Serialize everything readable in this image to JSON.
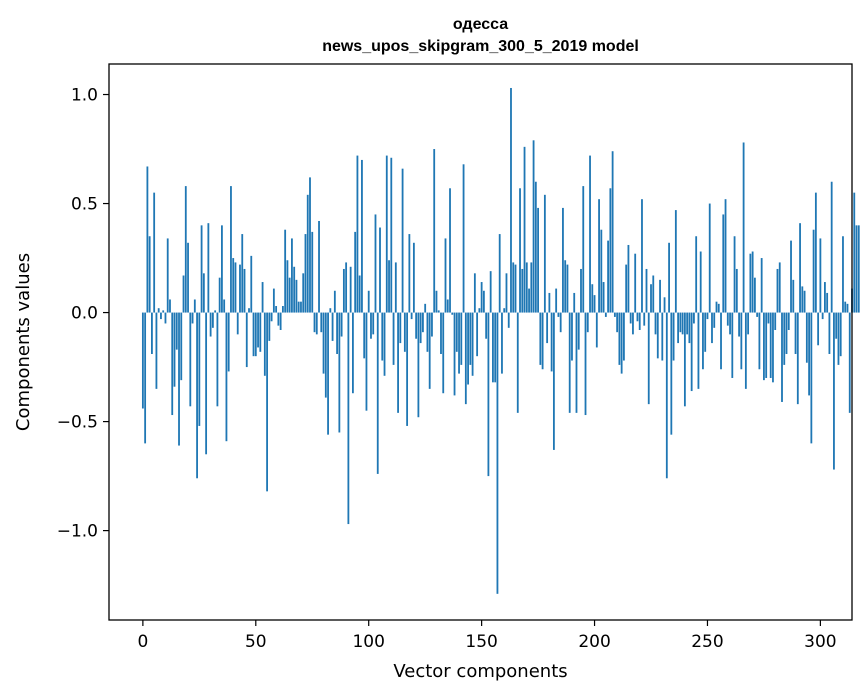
{
  "chart_data": {
    "type": "bar",
    "title_line1": "одесса",
    "title_line2": "news_upos_skipgram_300_5_2019 model",
    "xlabel": "Vector components",
    "ylabel": "Components values",
    "xlim": [
      -15,
      314
    ],
    "ylim": [
      -1.41,
      1.14
    ],
    "xticks": [
      0,
      50,
      100,
      150,
      200,
      250,
      300
    ],
    "xtick_labels": [
      "0",
      "50",
      "100",
      "150",
      "200",
      "250",
      "300"
    ],
    "yticks": [
      -1.0,
      -0.5,
      0.0,
      0.5,
      1.0
    ],
    "ytick_labels": [
      "−1.0",
      "−0.5",
      "0.0",
      "0.5",
      "1.0"
    ],
    "bar_color": "#1f77b4",
    "values": [
      -0.44,
      -0.6,
      0.67,
      0.35,
      -0.19,
      0.55,
      -0.35,
      0.02,
      -0.03,
      0.01,
      -0.05,
      0.34,
      0.06,
      -0.47,
      -0.34,
      -0.17,
      -0.61,
      -0.31,
      0.17,
      0.58,
      0.32,
      -0.43,
      -0.05,
      0.06,
      -0.76,
      -0.52,
      0.4,
      0.18,
      -0.65,
      0.41,
      -0.11,
      -0.07,
      0.01,
      -0.43,
      0.16,
      0.4,
      0.06,
      -0.59,
      -0.27,
      0.58,
      0.25,
      0.23,
      -0.1,
      0.22,
      0.36,
      0.2,
      -0.25,
      0.02,
      0.26,
      -0.2,
      -0.2,
      -0.16,
      -0.18,
      0.14,
      -0.29,
      -0.82,
      -0.13,
      -0.04,
      0.11,
      0.03,
      -0.06,
      -0.08,
      0.03,
      0.38,
      0.24,
      0.16,
      0.34,
      0.21,
      0.15,
      0.05,
      0.05,
      0.18,
      0.36,
      0.54,
      0.62,
      0.37,
      -0.09,
      -0.1,
      0.42,
      -0.09,
      -0.28,
      -0.39,
      -0.56,
      0.02,
      -0.13,
      0.1,
      -0.19,
      -0.55,
      -0.11,
      0.2,
      0.23,
      -0.97,
      0.21,
      -0.37,
      0.37,
      0.72,
      0.17,
      0.7,
      -0.21,
      -0.45,
      0.1,
      -0.12,
      -0.1,
      0.45,
      -0.74,
      0.39,
      -0.22,
      -0.29,
      0.72,
      0.24,
      0.71,
      -0.24,
      0.23,
      -0.46,
      -0.14,
      0.66,
      -0.18,
      -0.52,
      0.36,
      -0.03,
      0.32,
      -0.12,
      -0.48,
      -0.14,
      -0.09,
      0.04,
      -0.18,
      -0.35,
      -0.11,
      0.75,
      0.1,
      0.01,
      -0.19,
      -0.37,
      0.34,
      0.06,
      0.57,
      -0.01,
      -0.38,
      -0.18,
      -0.28,
      -0.24,
      0.68,
      -0.42,
      -0.33,
      -0.24,
      -0.29,
      0.18,
      -0.2,
      0.02,
      0.14,
      0.1,
      -0.12,
      -0.75,
      0.19,
      -0.32,
      -0.32,
      -1.29,
      0.36,
      -0.28,
      0.02,
      0.18,
      -0.07,
      1.03,
      0.23,
      0.22,
      -0.46,
      0.57,
      0.2,
      0.76,
      0.23,
      0.11,
      0.23,
      0.79,
      0.6,
      0.48,
      -0.24,
      -0.26,
      0.54,
      -0.14,
      0.09,
      -0.27,
      -0.63,
      0.11,
      -0.02,
      -0.09,
      0.48,
      0.24,
      0.22,
      -0.46,
      -0.22,
      0.09,
      -0.46,
      -0.17,
      0.2,
      0.58,
      -0.47,
      -0.09,
      0.72,
      0.13,
      0.08,
      -0.16,
      0.52,
      0.38,
      0.14,
      -0.02,
      0.33,
      0.57,
      0.74,
      -0.02,
      -0.09,
      -0.24,
      -0.28,
      -0.22,
      0.22,
      0.31,
      -0.05,
      -0.1,
      0.27,
      -0.04,
      -0.08,
      0.52,
      -0.06,
      0.2,
      -0.42,
      0.13,
      0.17,
      -0.1,
      -0.21,
      0.15,
      -0.22,
      0.07,
      -0.76,
      0.32,
      -0.56,
      -0.22,
      0.47,
      -0.14,
      -0.09,
      -0.1,
      -0.43,
      -0.1,
      -0.14,
      -0.36,
      -0.05,
      0.35,
      -0.35,
      0.28,
      -0.26,
      -0.18,
      -0.03,
      0.5,
      -0.14,
      -0.07,
      0.05,
      0.04,
      -0.26,
      0.45,
      0.52,
      -0.06,
      -0.1,
      -0.3,
      0.35,
      0.2,
      -0.11,
      -0.26,
      0.78,
      -0.35,
      -0.1,
      0.27,
      0.28,
      0.16,
      -0.02,
      -0.26,
      0.25,
      -0.31,
      -0.3,
      -0.05,
      -0.3,
      -0.32,
      -0.08,
      0.2,
      0.23,
      -0.41,
      -0.24,
      -0.19,
      -0.08,
      0.33,
      0.15,
      -0.19,
      -0.42,
      0.41,
      0.12,
      0.1,
      -0.23,
      -0.38,
      -0.6,
      0.38,
      0.55,
      -0.15,
      0.34,
      -0.03,
      0.14,
      0.09,
      -0.19,
      0.6,
      -0.72,
      -0.12,
      -0.24,
      -0.2,
      0.35,
      0.05,
      0.04,
      -0.46,
      0.11,
      0.55,
      0.4,
      0.4
    ]
  }
}
